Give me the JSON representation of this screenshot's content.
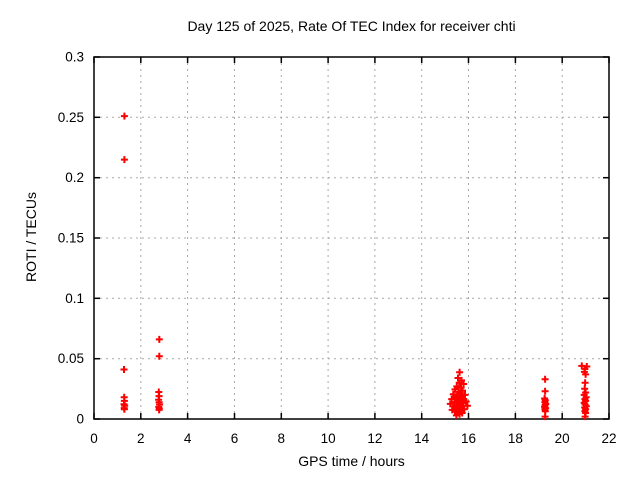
{
  "title": "Day 125 of 2025, Rate Of TEC Index for receiver chti",
  "chart_data": {
    "type": "scatter",
    "title": "Day 125 of 2025, Rate Of TEC Index for receiver chti",
    "xlabel": "GPS time / hours",
    "ylabel": "ROTI / TECUs",
    "xlim": [
      0,
      22
    ],
    "ylim": [
      0,
      0.3
    ],
    "xticks": [
      0,
      2,
      4,
      6,
      8,
      10,
      12,
      14,
      16,
      18,
      20,
      22
    ],
    "xtick_labels": [
      "0",
      "2",
      "4",
      "6",
      "8",
      "10",
      "12",
      "14",
      "16",
      "18",
      "20",
      "22"
    ],
    "yticks": [
      0,
      0.05,
      0.1,
      0.15,
      0.2,
      0.25,
      0.3
    ],
    "ytick_labels": [
      "0",
      "0.05",
      "0.1",
      "0.15",
      "0.2",
      "0.25",
      "0.3"
    ],
    "grid": true,
    "legend": "none",
    "marker": "plus",
    "colors": {
      "points": "#ff0000",
      "grid": "#a8a8a8",
      "axis": "#000000",
      "background": "#ffffff"
    },
    "series": [
      {
        "name": "ROTI",
        "color": "#ff0000",
        "points": [
          [
            1.3,
            0.251
          ],
          [
            1.3,
            0.215
          ],
          [
            1.28,
            0.041
          ],
          [
            1.29,
            0.018
          ],
          [
            1.3,
            0.015
          ],
          [
            1.28,
            0.0122
          ],
          [
            1.31,
            0.011
          ],
          [
            1.29,
            0.009
          ],
          [
            1.3,
            0.008
          ],
          [
            2.79,
            0.066
          ],
          [
            2.79,
            0.052
          ],
          [
            2.77,
            0.0224
          ],
          [
            2.78,
            0.019
          ],
          [
            2.76,
            0.016
          ],
          [
            2.78,
            0.0138
          ],
          [
            2.8,
            0.012
          ],
          [
            2.77,
            0.01
          ],
          [
            2.79,
            0.0085
          ],
          [
            2.78,
            0.0075
          ],
          [
            15.62,
            0.0387
          ],
          [
            15.55,
            0.034
          ],
          [
            15.7,
            0.032
          ],
          [
            15.6,
            0.03
          ],
          [
            15.79,
            0.029
          ],
          [
            15.5,
            0.027
          ],
          [
            15.68,
            0.026
          ],
          [
            15.42,
            0.0245
          ],
          [
            15.74,
            0.0235
          ],
          [
            15.58,
            0.0225
          ],
          [
            15.65,
            0.0215
          ],
          [
            15.35,
            0.0205
          ],
          [
            15.85,
            0.02
          ],
          [
            15.52,
            0.019
          ],
          [
            15.72,
            0.0185
          ],
          [
            15.45,
            0.018
          ],
          [
            15.62,
            0.017
          ],
          [
            15.28,
            0.0165
          ],
          [
            15.8,
            0.016
          ],
          [
            15.55,
            0.0155
          ],
          [
            15.68,
            0.015
          ],
          [
            15.9,
            0.0145
          ],
          [
            15.4,
            0.014
          ],
          [
            15.6,
            0.0135
          ],
          [
            15.75,
            0.013
          ],
          [
            15.22,
            0.0125
          ],
          [
            15.5,
            0.012
          ],
          [
            15.65,
            0.0115
          ],
          [
            15.95,
            0.011
          ],
          [
            15.35,
            0.0105
          ],
          [
            15.55,
            0.01
          ],
          [
            15.7,
            0.0095
          ],
          [
            15.45,
            0.009
          ],
          [
            15.6,
            0.0085
          ],
          [
            15.82,
            0.008
          ],
          [
            15.3,
            0.0075
          ],
          [
            15.52,
            0.007
          ],
          [
            15.66,
            0.0065
          ],
          [
            15.42,
            0.006
          ],
          [
            15.58,
            0.0055
          ],
          [
            15.73,
            0.005
          ],
          [
            15.62,
            0.004
          ],
          [
            15.48,
            0.003
          ],
          [
            19.27,
            0.033
          ],
          [
            19.27,
            0.023
          ],
          [
            19.25,
            0.017
          ],
          [
            19.28,
            0.0155
          ],
          [
            19.26,
            0.014
          ],
          [
            19.3,
            0.0125
          ],
          [
            19.27,
            0.0115
          ],
          [
            19.25,
            0.01
          ],
          [
            19.29,
            0.009
          ],
          [
            19.26,
            0.008
          ],
          [
            19.28,
            0.0065
          ],
          [
            19.27,
            0.002
          ],
          [
            20.84,
            0.044
          ],
          [
            21.05,
            0.0435
          ],
          [
            20.97,
            0.0415
          ],
          [
            20.95,
            0.039
          ],
          [
            21.0,
            0.037
          ],
          [
            20.98,
            0.03
          ],
          [
            20.96,
            0.025
          ],
          [
            21.0,
            0.022
          ],
          [
            20.94,
            0.02
          ],
          [
            21.02,
            0.018
          ],
          [
            20.97,
            0.0165
          ],
          [
            21.0,
            0.015
          ],
          [
            20.94,
            0.0135
          ],
          [
            20.98,
            0.012
          ],
          [
            21.03,
            0.0105
          ],
          [
            20.96,
            0.0095
          ],
          [
            21.0,
            0.008
          ],
          [
            20.97,
            0.0065
          ],
          [
            21.0,
            0.005
          ],
          [
            20.98,
            0.002
          ]
        ]
      }
    ]
  }
}
